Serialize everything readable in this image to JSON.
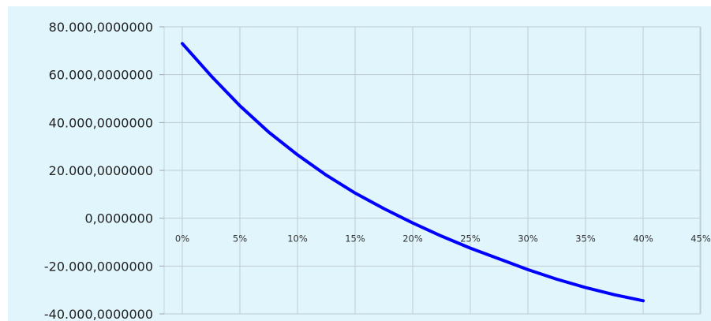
{
  "chart_data": {
    "type": "line",
    "title": "",
    "xlabel": "",
    "ylabel": "",
    "x_ticks": [
      "0%",
      "5%",
      "10%",
      "15%",
      "20%",
      "25%",
      "30%",
      "35%",
      "40%",
      "45%"
    ],
    "y_ticks": [
      "80.000,0000000",
      "60.000,0000000",
      "40.000,0000000",
      "20.000,0000000",
      "0,0000000",
      "-20.000,0000000",
      "-40.000,0000000"
    ],
    "xlim": [
      0,
      0.45
    ],
    "ylim": [
      -40000,
      80000
    ],
    "grid": true,
    "series": [
      {
        "color": "#0000ff",
        "x": [
          0,
          0.025,
          0.05,
          0.075,
          0.1,
          0.125,
          0.15,
          0.175,
          0.2,
          0.225,
          0.25,
          0.275,
          0.3,
          0.325,
          0.35,
          0.375,
          0.4
        ],
        "y": [
          73000,
          59500,
          47000,
          36000,
          26500,
          18000,
          10500,
          4000,
          -2000,
          -7500,
          -12500,
          -17000,
          -21500,
          -25500,
          -29000,
          -32000,
          -34500
        ]
      }
    ]
  }
}
